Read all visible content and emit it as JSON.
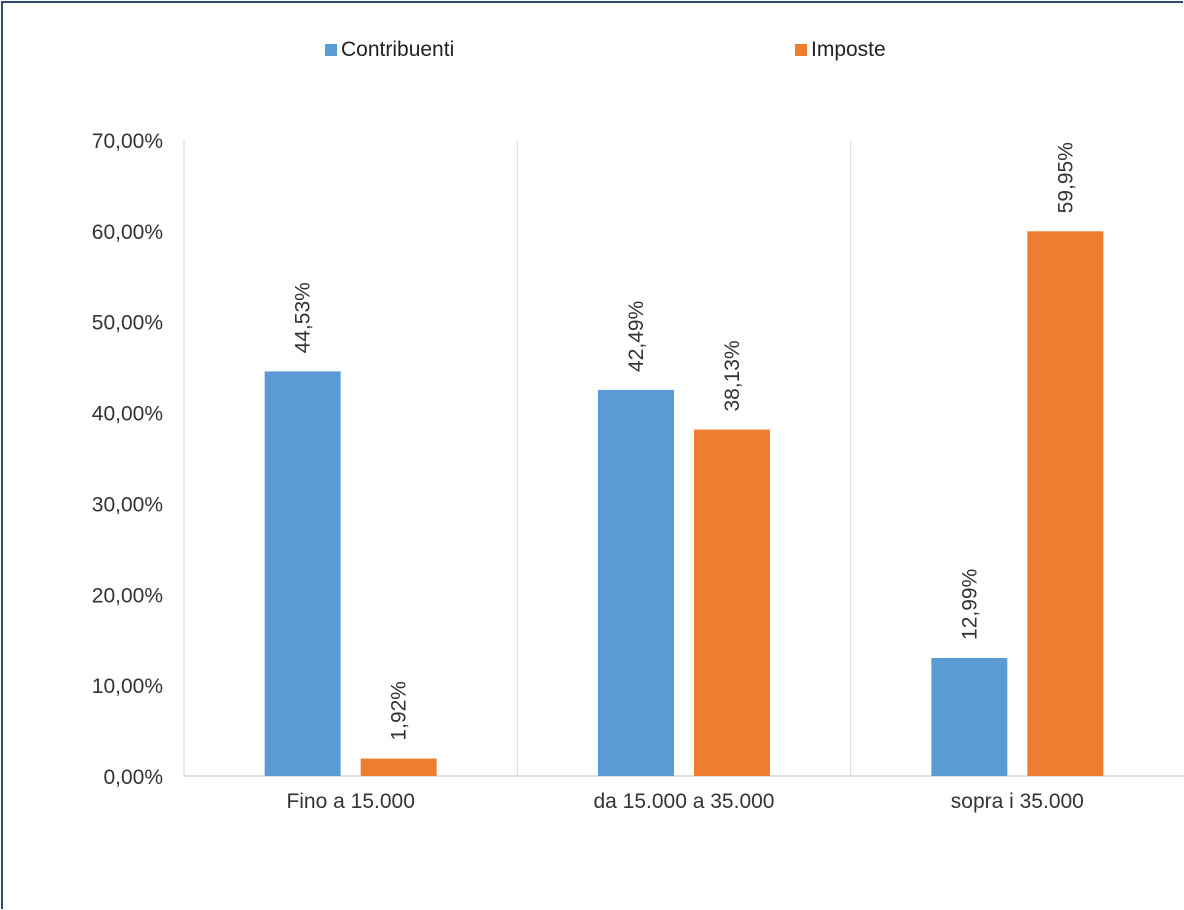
{
  "chart_data": {
    "type": "bar",
    "categories": [
      "Fino a 15.000",
      "da 15.000 a 35.000",
      "sopra i 35.000"
    ],
    "series": [
      {
        "name": "Contribuenti",
        "values": [
          44.53,
          42.49,
          12.99
        ],
        "labels": [
          "44,53%",
          "42,49%",
          "12,99%"
        ],
        "color": "#5b9bd5"
      },
      {
        "name": "Imposte",
        "values": [
          1.92,
          38.13,
          59.95
        ],
        "labels": [
          "1,92%",
          "38,13%",
          "59,95%"
        ],
        "color": "#ed7d31"
      }
    ],
    "yticks": [
      "0,00%",
      "10,00%",
      "20,00%",
      "30,00%",
      "40,00%",
      "50,00%",
      "60,00%",
      "70,00%"
    ],
    "ylim": [
      0,
      70
    ],
    "grid": "vertical separators between categories",
    "legend_position": "top"
  }
}
